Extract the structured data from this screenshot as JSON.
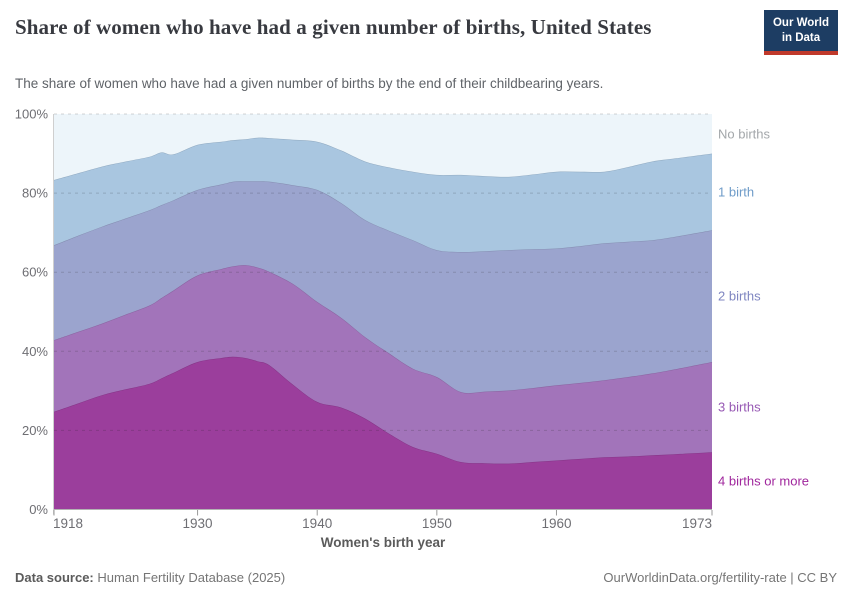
{
  "header": {
    "title": "Share of women who have had a given number of births, United States",
    "subtitle": "The share of women who have had a given number of births by the end of their childbearing years.",
    "logo": {
      "line1": "Our World",
      "line2": "in Data"
    }
  },
  "brand": {
    "navy": "#1d3d63",
    "red": "#c0392b"
  },
  "chart_data": {
    "type": "area",
    "stacked": true,
    "title": "Share of women who have had a given number of births, United States",
    "xlabel": "Women's birth year",
    "ylabel": "",
    "ylim": [
      0,
      100
    ],
    "grid": true,
    "legend_position": "right-of-plot",
    "y_ticks": [
      0,
      20,
      40,
      60,
      80,
      100
    ],
    "y_tick_labels": [
      "0%",
      "20%",
      "40%",
      "60%",
      "80%",
      "100%"
    ],
    "x_ticks": [
      1918,
      1930,
      1940,
      1950,
      1960,
      1973
    ],
    "x": [
      1918,
      1920,
      1922,
      1924,
      1926,
      1927,
      1928,
      1930,
      1932,
      1933,
      1934,
      1935,
      1936,
      1938,
      1940,
      1942,
      1944,
      1946,
      1948,
      1950,
      1952,
      1954,
      1956,
      1958,
      1960,
      1962,
      1964,
      1966,
      1968,
      1970,
      1973
    ],
    "series": [
      {
        "name": "4 births or more",
        "color": "#9b3e9c",
        "label_color": "#a0279d",
        "values": [
          24.7,
          26.8,
          28.9,
          30.4,
          31.8,
          33.2,
          34.6,
          37.3,
          38.3,
          38.6,
          38.3,
          37.5,
          36.5,
          31.5,
          27.2,
          25.8,
          23.0,
          19.2,
          15.8,
          14.1,
          12.0,
          11.7,
          11.6,
          12.0,
          12.4,
          12.8,
          13.2,
          13.4,
          13.7,
          14.0,
          14.5
        ]
      },
      {
        "name": "3 births",
        "color": "#a274ba",
        "label_color": "#9759b4",
        "values": [
          18.1,
          18.1,
          18.1,
          18.9,
          19.8,
          20.3,
          20.8,
          21.9,
          22.5,
          22.9,
          23.5,
          23.7,
          23.6,
          25.5,
          25.3,
          22.7,
          20.6,
          20.3,
          19.8,
          19.4,
          17.7,
          18.1,
          18.5,
          18.7,
          19.0,
          19.2,
          19.5,
          20.1,
          20.7,
          21.5,
          22.8
        ]
      },
      {
        "name": "2 births",
        "color": "#9ba4ce",
        "label_color": "#7f86c1",
        "values": [
          24.0,
          24.3,
          24.5,
          24.3,
          24.1,
          23.5,
          22.8,
          21.6,
          21.4,
          21.4,
          21.2,
          21.8,
          22.8,
          25.0,
          28.3,
          29.0,
          29.6,
          31.0,
          32.5,
          32.1,
          35.4,
          35.5,
          35.5,
          35.1,
          34.6,
          34.6,
          34.6,
          34.2,
          33.7,
          33.5,
          33.3
        ]
      },
      {
        "name": "1 birth",
        "color": "#a9c6e0",
        "label_color": "#6f9cc9",
        "values": [
          16.5,
          15.8,
          15.2,
          14.4,
          13.5,
          13.3,
          11.6,
          11.4,
          10.8,
          10.5,
          10.6,
          11.0,
          11.0,
          11.5,
          12.2,
          13.3,
          14.8,
          16.0,
          17.3,
          19.0,
          19.5,
          19.0,
          18.5,
          18.9,
          19.4,
          18.8,
          18.1,
          18.9,
          19.9,
          19.8,
          19.4
        ]
      },
      {
        "name": "No births",
        "color": "#edf5fa",
        "label_color": "#a3a7aa",
        "values": [
          16.7,
          15.0,
          13.3,
          12.0,
          10.8,
          9.7,
          10.2,
          7.8,
          7.0,
          6.6,
          6.4,
          6.0,
          6.1,
          6.5,
          7.0,
          9.2,
          12.0,
          13.5,
          14.6,
          15.4,
          15.4,
          15.7,
          15.9,
          15.3,
          14.6,
          14.6,
          14.6,
          13.4,
          12.0,
          11.2,
          10.0
        ]
      }
    ]
  },
  "footer": {
    "source_label": "Data source:",
    "source_value": " Human Fertility Database (2025)",
    "url": "OurWorldinData.org/fertility-rate | CC BY"
  }
}
